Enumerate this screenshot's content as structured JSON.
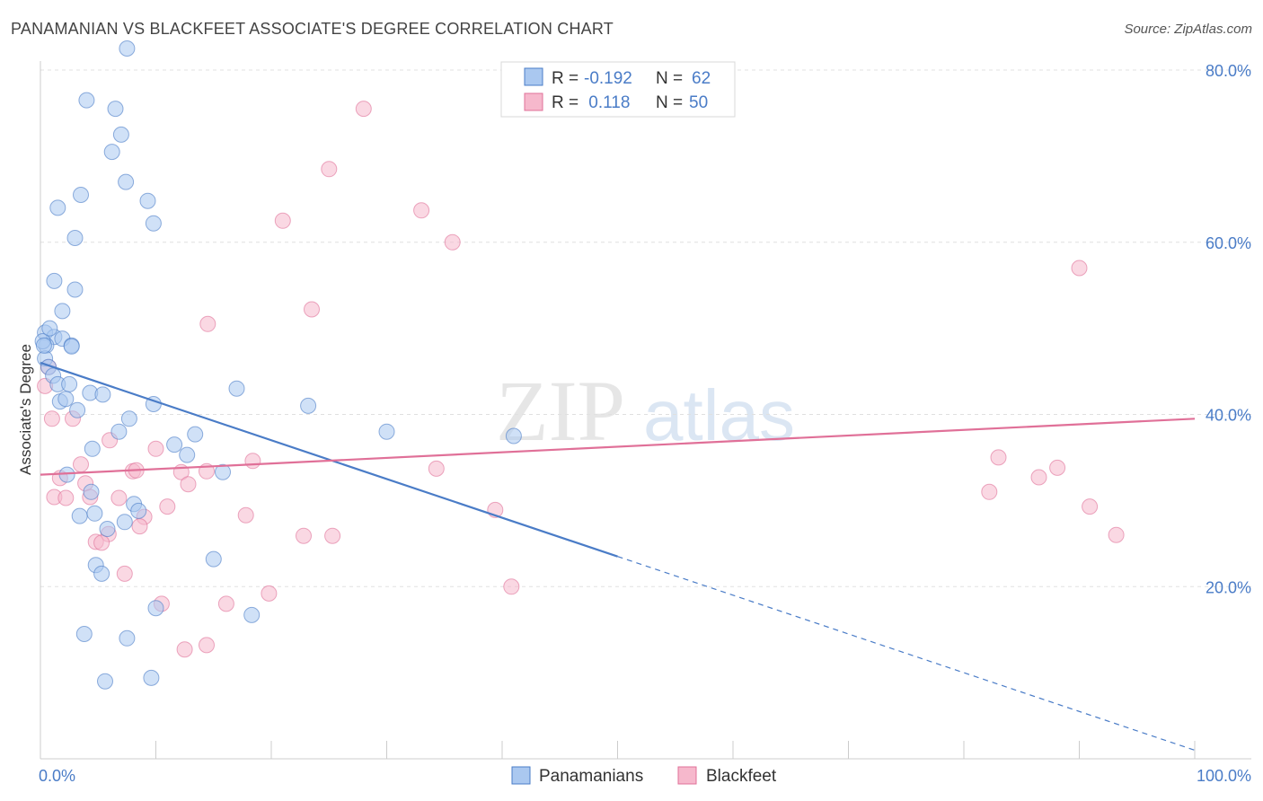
{
  "title": "PANAMANIAN VS BLACKFEET ASSOCIATE'S DEGREE CORRELATION CHART",
  "source": "Source: ZipAtlas.com",
  "colors": {
    "blue": "#4a7cc7",
    "pink": "#e07098",
    "blue_fill": "#aac8f0",
    "pink_fill": "#f6b8cc",
    "grid": "#e0e0e0"
  },
  "legend": {
    "rows": [
      {
        "r_label": "R = ",
        "r_value": "-0.192",
        "n_label": "N = ",
        "n_value": "62"
      },
      {
        "r_label": "R = ",
        "r_value": " 0.118",
        "n_label": "N = ",
        "n_value": "50"
      }
    ]
  },
  "chart_data": {
    "type": "scatter",
    "title": "PANAMANIAN VS BLACKFEET ASSOCIATE'S DEGREE CORRELATION CHART",
    "xlabel": "",
    "ylabel": "Associate's Degree",
    "xlim": [
      0,
      100
    ],
    "ylim": [
      0,
      80
    ],
    "x_tick_labels": [
      "0.0%",
      "100.0%"
    ],
    "y_ticks": [
      20,
      40,
      60,
      80
    ],
    "y_tick_labels": [
      "20.0%",
      "40.0%",
      "60.0%",
      "80.0%"
    ],
    "grid": true,
    "watermark": {
      "zip": "ZIP",
      "atlas": "atlas"
    },
    "series": [
      {
        "name": "Panamanians",
        "color": "#4a7cc7",
        "trend": {
          "x0": 0,
          "y0": 46,
          "x1": 50,
          "y1": 23.5,
          "dash_to_x": 100,
          "dash_to_y": 1
        },
        "points": [
          [
            7.5,
            82.5
          ],
          [
            4,
            76.5
          ],
          [
            6.5,
            75.5
          ],
          [
            7,
            72.5
          ],
          [
            6.2,
            70.5
          ],
          [
            7.4,
            67
          ],
          [
            3.5,
            65.5
          ],
          [
            1.5,
            64
          ],
          [
            9.3,
            64.8
          ],
          [
            9.8,
            62.2
          ],
          [
            3,
            60.5
          ],
          [
            1.2,
            55.5
          ],
          [
            3,
            54.5
          ],
          [
            1.9,
            52
          ],
          [
            0.4,
            49.5
          ],
          [
            1.2,
            49
          ],
          [
            0.5,
            48
          ],
          [
            1.9,
            48.8
          ],
          [
            2.7,
            48
          ],
          [
            2.7,
            47.9
          ],
          [
            0.4,
            46.5
          ],
          [
            0.7,
            45.5
          ],
          [
            1.1,
            44.5
          ],
          [
            1.5,
            43.5
          ],
          [
            2.5,
            43.5
          ],
          [
            4.3,
            42.5
          ],
          [
            5.4,
            42.3
          ],
          [
            1.7,
            41.5
          ],
          [
            3.2,
            40.5
          ],
          [
            7.7,
            39.5
          ],
          [
            9.8,
            41.2
          ],
          [
            17,
            43
          ],
          [
            23.2,
            41
          ],
          [
            30,
            38
          ],
          [
            41,
            37.5
          ],
          [
            6.8,
            38
          ],
          [
            13.4,
            37.7
          ],
          [
            11.6,
            36.5
          ],
          [
            4.5,
            36
          ],
          [
            12.7,
            35.3
          ],
          [
            2.3,
            33
          ],
          [
            15.8,
            33.3
          ],
          [
            4.4,
            31
          ],
          [
            8.1,
            29.6
          ],
          [
            3.4,
            28.2
          ],
          [
            4.7,
            28.5
          ],
          [
            8.5,
            28.8
          ],
          [
            7.3,
            27.5
          ],
          [
            5.8,
            26.7
          ],
          [
            4.8,
            22.5
          ],
          [
            15,
            23.2
          ],
          [
            5.3,
            21.5
          ],
          [
            10,
            17.5
          ],
          [
            18.3,
            16.7
          ],
          [
            3.8,
            14.5
          ],
          [
            7.5,
            14
          ],
          [
            5.6,
            9
          ],
          [
            9.6,
            9.4
          ],
          [
            0.2,
            48.5
          ],
          [
            0.3,
            48
          ],
          [
            0.8,
            50
          ],
          [
            2.2,
            41.8
          ]
        ]
      },
      {
        "name": "Blackfeet",
        "color": "#e07098",
        "trend": {
          "x0": 0,
          "y0": 33,
          "x1": 100,
          "y1": 39.5
        },
        "points": [
          [
            28,
            75.5
          ],
          [
            25,
            68.5
          ],
          [
            33,
            63.7
          ],
          [
            21,
            62.5
          ],
          [
            35.7,
            60
          ],
          [
            90,
            57
          ],
          [
            23.5,
            52.2
          ],
          [
            14.5,
            50.5
          ],
          [
            0.7,
            45.5
          ],
          [
            0.4,
            43.3
          ],
          [
            1,
            39.5
          ],
          [
            2.8,
            39.5
          ],
          [
            6,
            37
          ],
          [
            10,
            36
          ],
          [
            18.4,
            34.6
          ],
          [
            12.2,
            33.3
          ],
          [
            8,
            33.4
          ],
          [
            8.3,
            33.5
          ],
          [
            14.4,
            33.4
          ],
          [
            3.5,
            34.2
          ],
          [
            34.3,
            33.7
          ],
          [
            1.7,
            32.6
          ],
          [
            3.9,
            32
          ],
          [
            12.8,
            31.9
          ],
          [
            6.8,
            30.3
          ],
          [
            83,
            35
          ],
          [
            86.5,
            32.7
          ],
          [
            88.1,
            33.8
          ],
          [
            82.2,
            31
          ],
          [
            90.9,
            29.3
          ],
          [
            1.2,
            30.4
          ],
          [
            2.2,
            30.3
          ],
          [
            11,
            29.3
          ],
          [
            4.3,
            30.4
          ],
          [
            17.8,
            28.3
          ],
          [
            9,
            28.1
          ],
          [
            8.6,
            27
          ],
          [
            39.4,
            28.9
          ],
          [
            5.9,
            26.1
          ],
          [
            4.8,
            25.2
          ],
          [
            22.8,
            25.9
          ],
          [
            25.3,
            25.9
          ],
          [
            93.2,
            26
          ],
          [
            5.3,
            25.1
          ],
          [
            7.3,
            21.5
          ],
          [
            40.8,
            20
          ],
          [
            19.8,
            19.2
          ],
          [
            10.5,
            18
          ],
          [
            16.1,
            18
          ],
          [
            12.5,
            12.7
          ],
          [
            14.4,
            13.2
          ]
        ]
      }
    ]
  },
  "bottom_legend": [
    {
      "label": "Panamanians"
    },
    {
      "label": "Blackfeet"
    }
  ]
}
